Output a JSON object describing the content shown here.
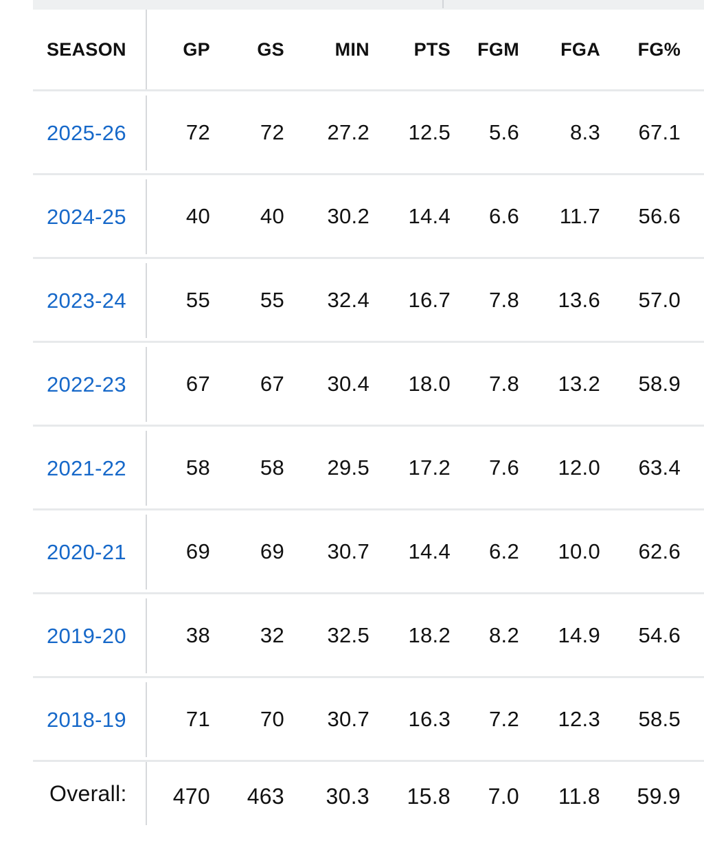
{
  "columns": {
    "season": "SEASON",
    "gp": "GP",
    "gs": "GS",
    "min": "MIN",
    "pts": "PTS",
    "fgm": "FGM",
    "fga": "FGA",
    "fgp": "FG%"
  },
  "rows": [
    {
      "season": "2025-26",
      "gp": "72",
      "gs": "72",
      "min": "27.2",
      "pts": "12.5",
      "fgm": "5.6",
      "fga": "8.3",
      "fgp": "67.1"
    },
    {
      "season": "2024-25",
      "gp": "40",
      "gs": "40",
      "min": "30.2",
      "pts": "14.4",
      "fgm": "6.6",
      "fga": "11.7",
      "fgp": "56.6"
    },
    {
      "season": "2023-24",
      "gp": "55",
      "gs": "55",
      "min": "32.4",
      "pts": "16.7",
      "fgm": "7.8",
      "fga": "13.6",
      "fgp": "57.0"
    },
    {
      "season": "2022-23",
      "gp": "67",
      "gs": "67",
      "min": "30.4",
      "pts": "18.0",
      "fgm": "7.8",
      "fga": "13.2",
      "fgp": "58.9"
    },
    {
      "season": "2021-22",
      "gp": "58",
      "gs": "58",
      "min": "29.5",
      "pts": "17.2",
      "fgm": "7.6",
      "fga": "12.0",
      "fgp": "63.4"
    },
    {
      "season": "2020-21",
      "gp": "69",
      "gs": "69",
      "min": "30.7",
      "pts": "14.4",
      "fgm": "6.2",
      "fga": "10.0",
      "fgp": "62.6"
    },
    {
      "season": "2019-20",
      "gp": "38",
      "gs": "32",
      "min": "32.5",
      "pts": "18.2",
      "fgm": "8.2",
      "fga": "14.9",
      "fgp": "54.6"
    },
    {
      "season": "2018-19",
      "gp": "71",
      "gs": "70",
      "min": "30.7",
      "pts": "16.3",
      "fgm": "7.2",
      "fga": "12.3",
      "fgp": "58.5"
    }
  ],
  "totals": {
    "label": "Overall:",
    "gp": "470",
    "gs": "463",
    "min": "30.3",
    "pts": "15.8",
    "fgm": "7.0",
    "fga": "11.8",
    "fgp": "59.9"
  },
  "colors": {
    "link": "#1668c9",
    "text": "#111111",
    "divider": "#e7e9eb"
  }
}
